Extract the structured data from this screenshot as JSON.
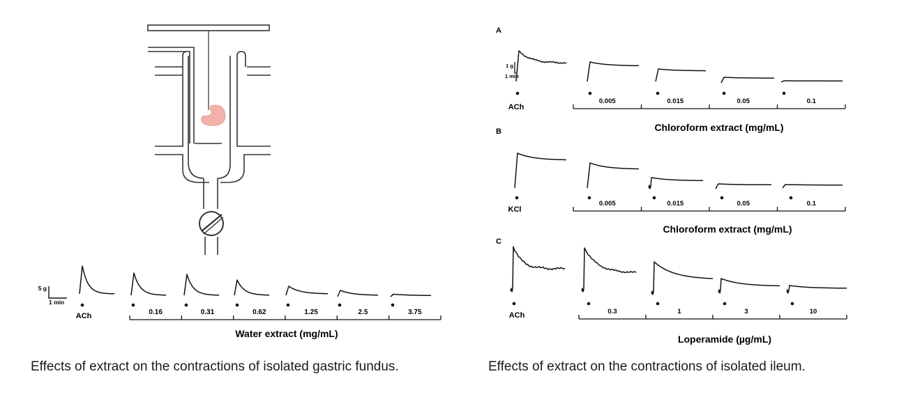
{
  "left_panel": {
    "scale": {
      "force": "5 g",
      "time": "1 min"
    },
    "first_label": "ACh",
    "doses": [
      "0.16",
      "0.31",
      "0.62",
      "1.25",
      "2.5",
      "3.75"
    ],
    "axis_title": "Water extract (mg/mL)",
    "caption": "Effects of extract on the contractions of isolated gastric fundus."
  },
  "right_panel": {
    "caption": "Effects of  extract on the contractions of isolated ileum.",
    "panels": [
      {
        "letter": "A",
        "scale": {
          "force": "1 g",
          "time": "1 min"
        },
        "first_label": "ACh",
        "doses": [
          "0.005",
          "0.015",
          "0.05",
          "0.1"
        ],
        "axis_title": "Chloroform extract (mg/mL)"
      },
      {
        "letter": "B",
        "first_label": "KCl",
        "doses": [
          "0.005",
          "0.015",
          "0.05",
          "0.1"
        ],
        "axis_title": "Chloroform extract (mg/mL)"
      },
      {
        "letter": "C",
        "first_label": "ACh",
        "doses": [
          "0.3",
          "1",
          "3",
          "10"
        ],
        "axis_title": "Loperamide (µg/mL)"
      }
    ]
  },
  "colors": {
    "stomach": "#f2b1aa",
    "trace": "#111111",
    "apparatus": "#333333"
  }
}
